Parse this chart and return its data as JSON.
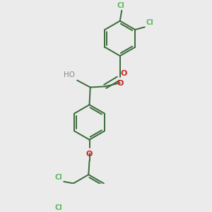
{
  "bg_color": "#ebebeb",
  "bond_color": "#3a6b3a",
  "cl_color": "#5cb85c",
  "o_color": "#cc2222",
  "h_color": "#888888",
  "line_width": 1.4,
  "dbo": 0.012,
  "fig_size": [
    3.0,
    3.0
  ],
  "dpi": 100,
  "xlim": [
    0,
    10
  ],
  "ylim": [
    0,
    10
  ]
}
